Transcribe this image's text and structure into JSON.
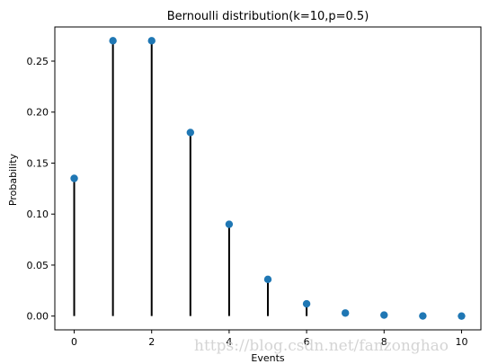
{
  "chart_data": {
    "type": "scatter",
    "style": "stem",
    "title": "Bernoulli distribution(k=10,p=0.5)",
    "xlabel": "Events",
    "ylabel": "Probability",
    "xlim": [
      -0.5,
      10.5
    ],
    "ylim": [
      -0.0135,
      0.2835
    ],
    "xticks": [
      0,
      2,
      4,
      6,
      8,
      10
    ],
    "xtick_labels": [
      "0",
      "2",
      "4",
      "6",
      "8",
      "10"
    ],
    "yticks": [
      0.0,
      0.05,
      0.1,
      0.15,
      0.2,
      0.25
    ],
    "ytick_labels": [
      "0.00",
      "0.05",
      "0.10",
      "0.15",
      "0.20",
      "0.25"
    ],
    "grid": false,
    "x": [
      0,
      1,
      2,
      3,
      4,
      5,
      6,
      7,
      8,
      9,
      10
    ],
    "y": [
      0.135,
      0.27,
      0.27,
      0.18,
      0.09,
      0.036,
      0.012,
      0.003,
      0.001,
      0.0001,
      1e-05
    ],
    "marker_color": "#1f77b4",
    "stem_color": "#000000"
  },
  "watermark": "https://blog.csdn.net/fanzonghao"
}
